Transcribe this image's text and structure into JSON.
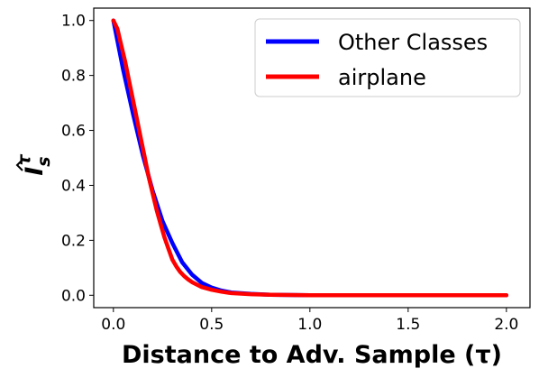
{
  "chart_data": {
    "type": "line",
    "title": "",
    "xlabel": "Distance to Adv. Sample (τ)",
    "ylabel": "Î_s^τ",
    "ylabel_parts": {
      "base": "I",
      "sub": "s",
      "sup": "τ"
    },
    "xlim": [
      -0.1,
      2.12
    ],
    "ylim": [
      -0.045,
      1.045
    ],
    "xticks": [
      0.0,
      0.5,
      1.0,
      1.5,
      2.0
    ],
    "xtick_labels": [
      "0.0",
      "0.5",
      "1.0",
      "1.5",
      "2.0"
    ],
    "yticks": [
      0.0,
      0.2,
      0.4,
      0.6,
      0.8,
      1.0
    ],
    "ytick_labels": [
      "0.0",
      "0.2",
      "0.4",
      "0.6",
      "0.8",
      "1.0"
    ],
    "grid": false,
    "legend_position": "top-right",
    "series": [
      {
        "name": "Other Classes",
        "color": "#0000ff",
        "x": [
          0.0,
          0.05,
          0.1,
          0.15,
          0.2,
          0.25,
          0.3,
          0.35,
          0.4,
          0.45,
          0.5,
          0.55,
          0.6,
          0.7,
          0.8,
          0.9,
          1.0,
          1.2,
          1.4,
          1.6,
          1.8,
          2.0
        ],
        "y": [
          1.0,
          0.82,
          0.66,
          0.51,
          0.38,
          0.27,
          0.19,
          0.12,
          0.075,
          0.045,
          0.028,
          0.017,
          0.01,
          0.005,
          0.002,
          0.001,
          0.0,
          0.0,
          0.0,
          0.0,
          0.0,
          0.0
        ]
      },
      {
        "name": "airplane",
        "color": "#ff0000",
        "x": [
          0.0,
          0.02,
          0.04,
          0.06,
          0.08,
          0.1,
          0.12,
          0.14,
          0.16,
          0.18,
          0.2,
          0.22,
          0.24,
          0.26,
          0.28,
          0.3,
          0.32,
          0.34,
          0.36,
          0.38,
          0.4,
          0.45,
          0.5,
          0.55,
          0.6,
          0.7,
          0.8,
          0.9,
          1.0,
          1.2,
          1.4,
          1.6,
          1.8,
          2.0
        ],
        "y": [
          1.0,
          0.97,
          0.91,
          0.85,
          0.78,
          0.71,
          0.64,
          0.57,
          0.5,
          0.43,
          0.37,
          0.31,
          0.26,
          0.21,
          0.17,
          0.13,
          0.105,
          0.085,
          0.07,
          0.058,
          0.048,
          0.03,
          0.02,
          0.013,
          0.008,
          0.004,
          0.002,
          0.001,
          0.0,
          0.0,
          0.0,
          0.0,
          0.0,
          0.0
        ]
      }
    ]
  }
}
